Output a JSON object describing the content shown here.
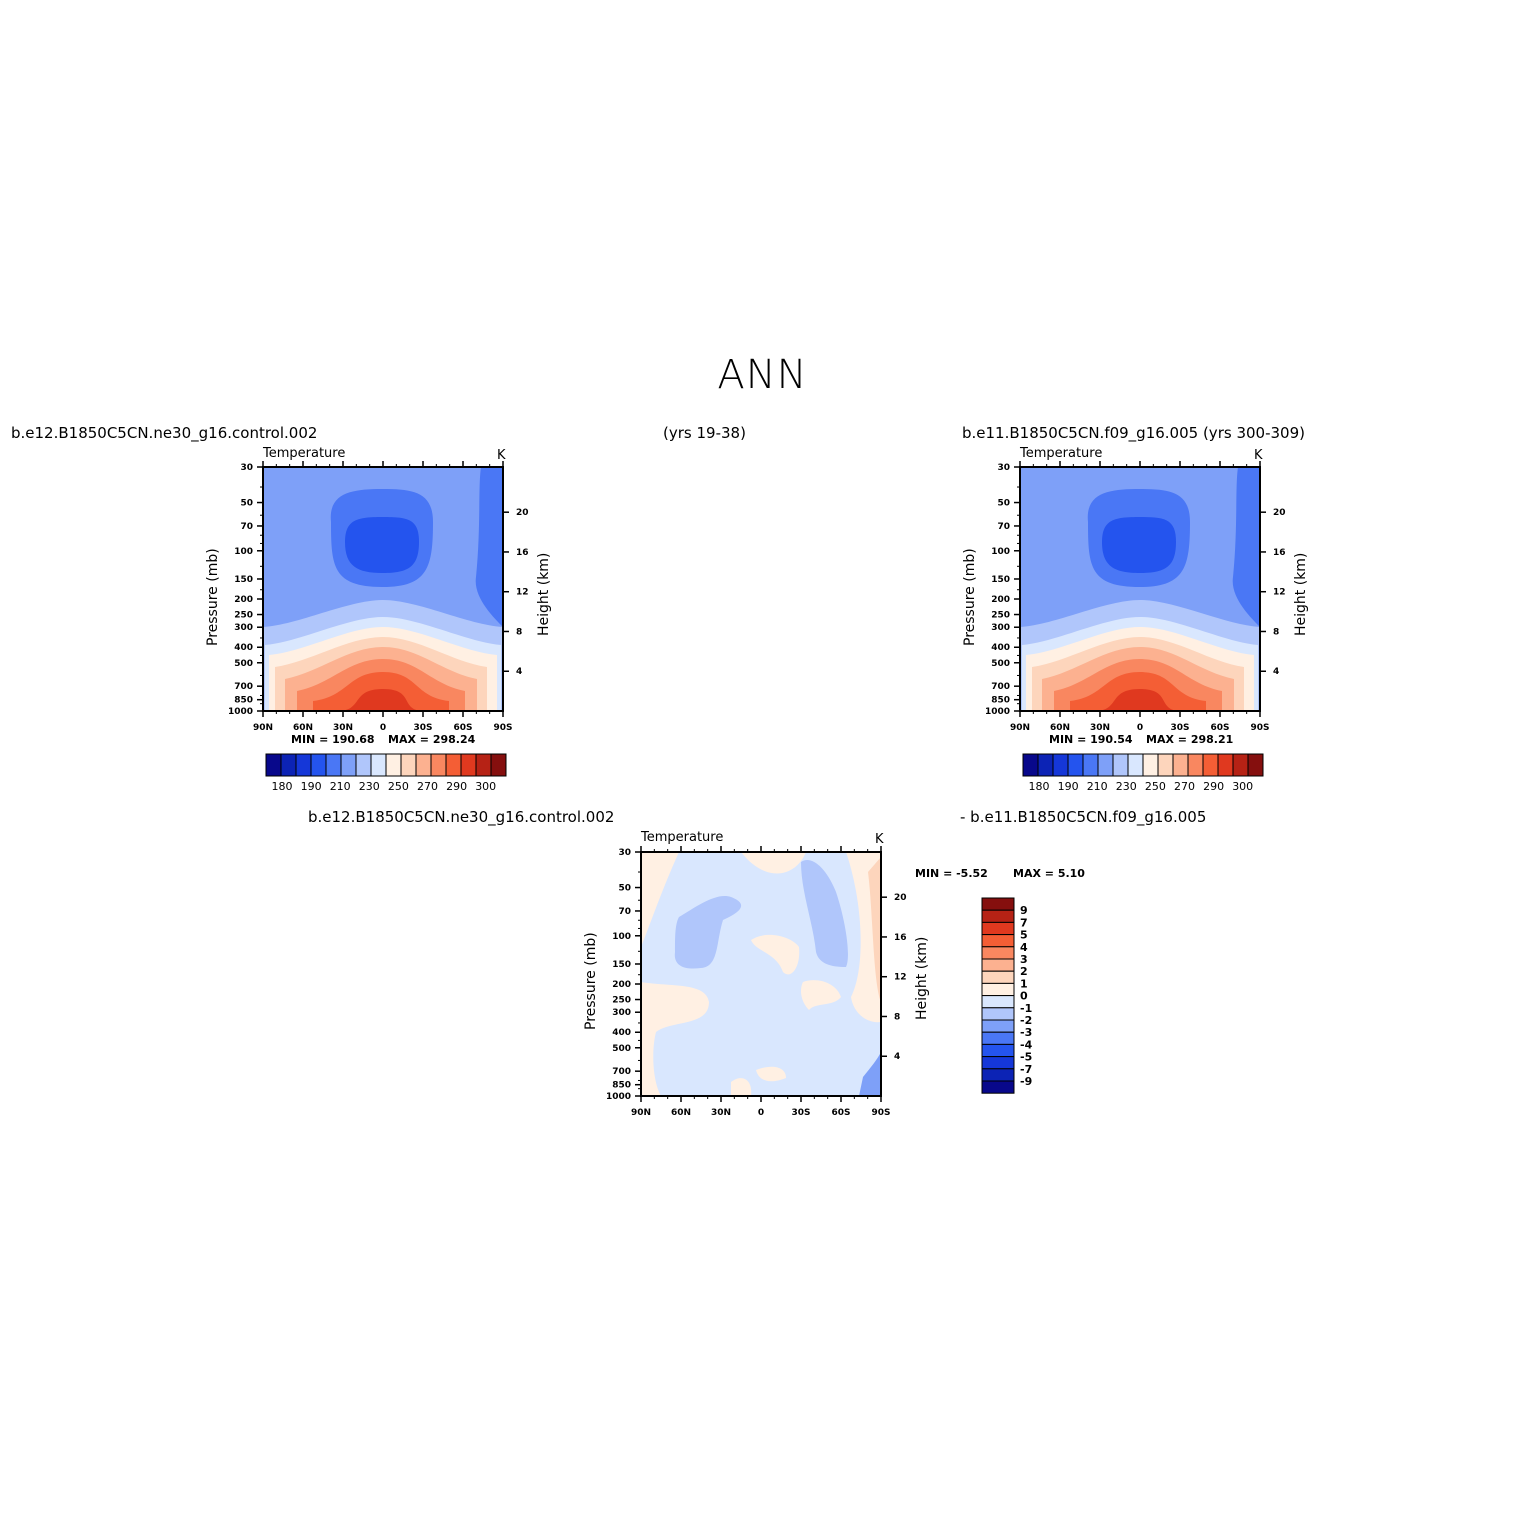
{
  "title": "ANN",
  "case1": "b.e12.B1850C5CN.ne30_g16.control.002",
  "case1_years": "(yrs 19-38)",
  "case2": "b.e11.B1850C5CN.f09_g16.005 (yrs 300-309)",
  "diff_case1": "b.e12.B1850C5CN.ne30_g16.control.002",
  "diff_case2": "- b.e11.B1850C5CN.f09_g16.005",
  "colors": {
    "temp_levels": [
      "#08088b",
      "#0c23b5",
      "#1537d8",
      "#2454ee",
      "#4a77f5",
      "#7ea0f8",
      "#b0c6fb",
      "#d9e7fe",
      "#fff0e3",
      "#fdd5bc",
      "#fcb190",
      "#f98760",
      "#f45e35",
      "#e0391f",
      "#b62215",
      "#850f0e"
    ],
    "diff_levels": [
      "#08088b",
      "#0c23b5",
      "#1537d8",
      "#2454ee",
      "#4a77f5",
      "#7ea0f8",
      "#b0c6fb",
      "#d9e7fe",
      "#fff0e3",
      "#fdd5bc",
      "#fcb190",
      "#f98760",
      "#f45e35",
      "#e0391f",
      "#b62215",
      "#850f0e"
    ]
  },
  "chart_data": [
    {
      "type": "heatmap",
      "title": "Temperature",
      "units": "K",
      "xlabel": "",
      "ylabel": "Pressure (mb)",
      "ylabel_right": "Height (km)",
      "x_ticks": [
        "90N",
        "60N",
        "30N",
        "0",
        "30S",
        "60S",
        "90S"
      ],
      "y_ticks": [
        "30",
        "50",
        "70",
        "100",
        "150",
        "200",
        "250",
        "300",
        "400",
        "500",
        "700",
        "850",
        "1000"
      ],
      "y_right_ticks": [
        "20",
        "16",
        "12",
        "8",
        "4"
      ],
      "min_label": "MIN = 190.68",
      "max_label": "MAX = 298.24",
      "min": 190.68,
      "max": 298.24,
      "colorbar_labels": [
        "180",
        "190",
        "210",
        "230",
        "250",
        "270",
        "290",
        "300"
      ]
    },
    {
      "type": "heatmap",
      "title": "Temperature",
      "units": "K",
      "xlabel": "",
      "ylabel": "Pressure (mb)",
      "ylabel_right": "Height (km)",
      "x_ticks": [
        "90N",
        "60N",
        "30N",
        "0",
        "30S",
        "60S",
        "90S"
      ],
      "y_ticks": [
        "30",
        "50",
        "70",
        "100",
        "150",
        "200",
        "250",
        "300",
        "400",
        "500",
        "700",
        "850",
        "1000"
      ],
      "y_right_ticks": [
        "20",
        "16",
        "12",
        "8",
        "4"
      ],
      "min_label": "MIN = 190.54",
      "max_label": "MAX = 298.21",
      "min": 190.54,
      "max": 298.21,
      "colorbar_labels": [
        "180",
        "190",
        "210",
        "230",
        "250",
        "270",
        "290",
        "300"
      ]
    },
    {
      "type": "heatmap",
      "title": "Temperature",
      "units": "K",
      "xlabel": "",
      "ylabel": "Pressure (mb)",
      "ylabel_right": "Height (km)",
      "x_ticks": [
        "90N",
        "60N",
        "30N",
        "0",
        "30S",
        "60S",
        "90S"
      ],
      "y_ticks": [
        "30",
        "50",
        "70",
        "100",
        "150",
        "200",
        "250",
        "300",
        "400",
        "500",
        "700",
        "850",
        "1000"
      ],
      "y_right_ticks": [
        "20",
        "16",
        "12",
        "8",
        "4"
      ],
      "min_label": "MIN =   -5.52",
      "max_label": "MAX =    5.10",
      "min": -5.52,
      "max": 5.1,
      "colorbar_labels": [
        "9",
        "7",
        "5",
        "4",
        "3",
        "2",
        "1",
        "0",
        "-1",
        "-2",
        "-3",
        "-4",
        "-5",
        "-7",
        "-9"
      ]
    }
  ]
}
